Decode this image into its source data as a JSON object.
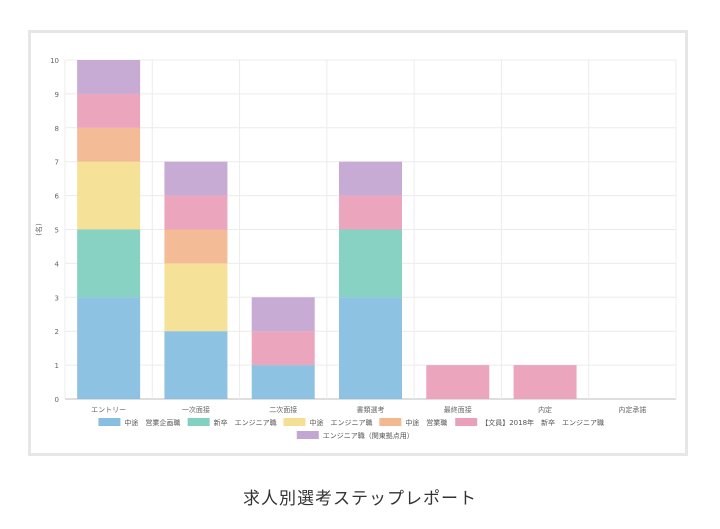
{
  "page": {
    "caption": "求人別選考ステップレポート"
  },
  "chart_data": {
    "type": "bar",
    "stacked": true,
    "categories": [
      "エントリー",
      "一次面接",
      "二次面接",
      "書類選考",
      "最終面接",
      "内定",
      "内定承諾"
    ],
    "ylabel": "(名)",
    "xlabel": "",
    "ylim": [
      0,
      10
    ],
    "yticks": [
      0,
      1,
      2,
      3,
      4,
      5,
      6,
      7,
      8,
      9,
      10
    ],
    "grid": true,
    "legend_position": "bottom",
    "series": [
      {
        "name": "中途　営業企画職",
        "color": "#88bfe0",
        "values": [
          3,
          2,
          1,
          3,
          0,
          0,
          0
        ]
      },
      {
        "name": "新卒　エンジニア職",
        "color": "#82d0c0",
        "values": [
          2,
          0,
          0,
          2,
          0,
          0,
          0
        ]
      },
      {
        "name": "中途　エンジニア職",
        "color": "#f5df92",
        "values": [
          2,
          2,
          0,
          0,
          0,
          0,
          0
        ]
      },
      {
        "name": "中途　営業職",
        "color": "#f3b890",
        "values": [
          1,
          1,
          0,
          0,
          0,
          0,
          0
        ]
      },
      {
        "name": "【文員】2018年　新卒　エンジニア職",
        "color": "#eaa0b8",
        "values": [
          1,
          1,
          1,
          1,
          1,
          1,
          0
        ]
      },
      {
        "name": "エンジニア職（関東拠点用）",
        "color": "#c4a6d2",
        "values": [
          1,
          1,
          1,
          1,
          0,
          0,
          0
        ]
      }
    ]
  }
}
